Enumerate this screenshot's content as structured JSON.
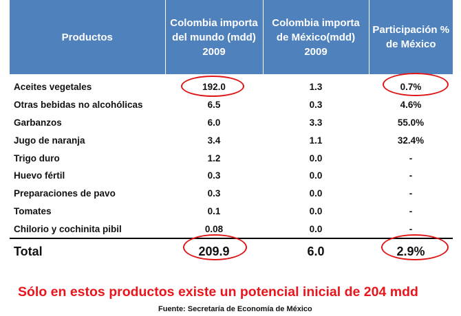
{
  "table": {
    "headers": [
      "Productos",
      "Colombia importa del mundo (mdd) 2009",
      "Colombia importa de México(mdd) 2009",
      "Participación % de México"
    ],
    "rows": [
      {
        "product": "Aceites vegetales",
        "world": "192.0",
        "mexico": "1.3",
        "share": "0.7%"
      },
      {
        "product": "Otras bebidas no alcohólicas",
        "world": "6.5",
        "mexico": "0.3",
        "share": "4.6%"
      },
      {
        "product": "Garbanzos",
        "world": "6.0",
        "mexico": "3.3",
        "share": "55.0%"
      },
      {
        "product": "Jugo de naranja",
        "world": "3.4",
        "mexico": "1.1",
        "share": "32.4%"
      },
      {
        "product": "Trigo duro",
        "world": "1.2",
        "mexico": "0.0",
        "share": "-"
      },
      {
        "product": "Huevo fértil",
        "world": "0.3",
        "mexico": "0.0",
        "share": "-"
      },
      {
        "product": "Preparaciones de pavo",
        "world": "0.3",
        "mexico": "0.0",
        "share": "-"
      },
      {
        "product": "Tomates",
        "world": "0.1",
        "mexico": "0.0",
        "share": "-"
      },
      {
        "product": "Chilorio y cochinita pibil",
        "world": "0.08",
        "mexico": "0.0",
        "share": "-"
      }
    ],
    "total": {
      "product": "Total",
      "world": "209.9",
      "mexico": "6.0",
      "share": "2.9%"
    }
  },
  "note": "Sólo en estos productos existe un potencial inicial de 204 mdd",
  "source": "Fuente: Secretaría de Economía de México",
  "colors": {
    "header_bg": "#4f81bd",
    "highlight": "#e01515",
    "note": "#e8161c"
  }
}
